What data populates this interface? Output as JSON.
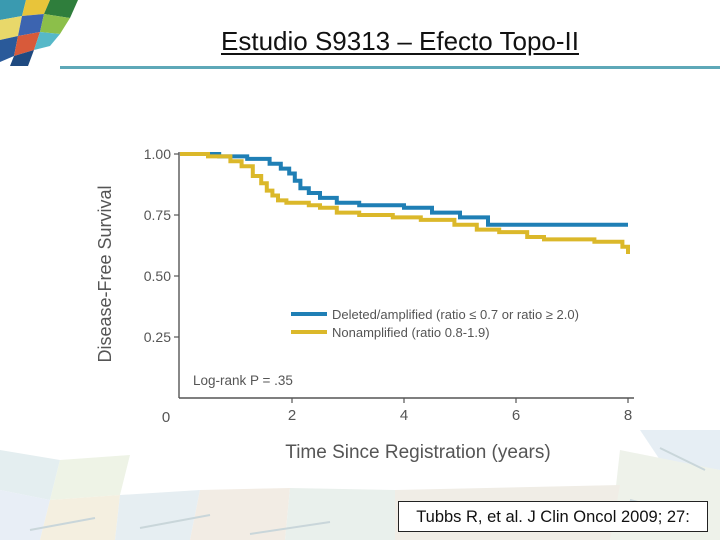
{
  "slide": {
    "title": "Estudio S9313 – Efecto Topo-II",
    "citation": "Tubbs R, et al. J Clin Oncol 2009; 27:"
  },
  "colors": {
    "deleted": "#1f7fb5",
    "nonamplified": "#dbb82a",
    "axis": "#555555",
    "title_rule": "#5ea8b8"
  },
  "chart_data": {
    "type": "line",
    "step": true,
    "xlabel": "Time Since Registration (years)",
    "ylabel": "Disease-Free Survival",
    "xlim": [
      0,
      8
    ],
    "ylim": [
      0,
      1.0
    ],
    "x_ticks": [
      "0",
      "2",
      "4",
      "6",
      "8"
    ],
    "y_ticks": [
      "0.25",
      "0.50",
      "0.75",
      "1.00"
    ],
    "annotation": "Log-rank P = .35",
    "legend_position": "center-right",
    "series": [
      {
        "name": "Deleted/amplified (ratio ≤ 0.7 or ratio ≥ 2.0)",
        "color": "#1f7fb5",
        "x": [
          0,
          0.7,
          1.2,
          1.6,
          1.8,
          1.95,
          2.05,
          2.15,
          2.3,
          2.5,
          2.8,
          3.2,
          4.0,
          4.5,
          5.0,
          5.5,
          8.0
        ],
        "y": [
          1.0,
          0.99,
          0.98,
          0.96,
          0.94,
          0.92,
          0.89,
          0.86,
          0.84,
          0.82,
          0.8,
          0.79,
          0.78,
          0.76,
          0.74,
          0.71,
          0.71
        ]
      },
      {
        "name": "Nonamplified (ratio 0.8-1.9)",
        "color": "#dbb82a",
        "x": [
          0,
          0.5,
          0.9,
          1.1,
          1.3,
          1.45,
          1.55,
          1.65,
          1.75,
          1.9,
          2.3,
          2.5,
          2.8,
          3.2,
          3.8,
          4.3,
          4.9,
          5.3,
          5.7,
          6.2,
          6.5,
          7.4,
          7.9,
          8.0
        ],
        "y": [
          1.0,
          0.99,
          0.97,
          0.95,
          0.91,
          0.88,
          0.85,
          0.83,
          0.81,
          0.8,
          0.79,
          0.78,
          0.76,
          0.75,
          0.74,
          0.73,
          0.71,
          0.69,
          0.68,
          0.66,
          0.65,
          0.64,
          0.62,
          0.59
        ]
      }
    ]
  }
}
